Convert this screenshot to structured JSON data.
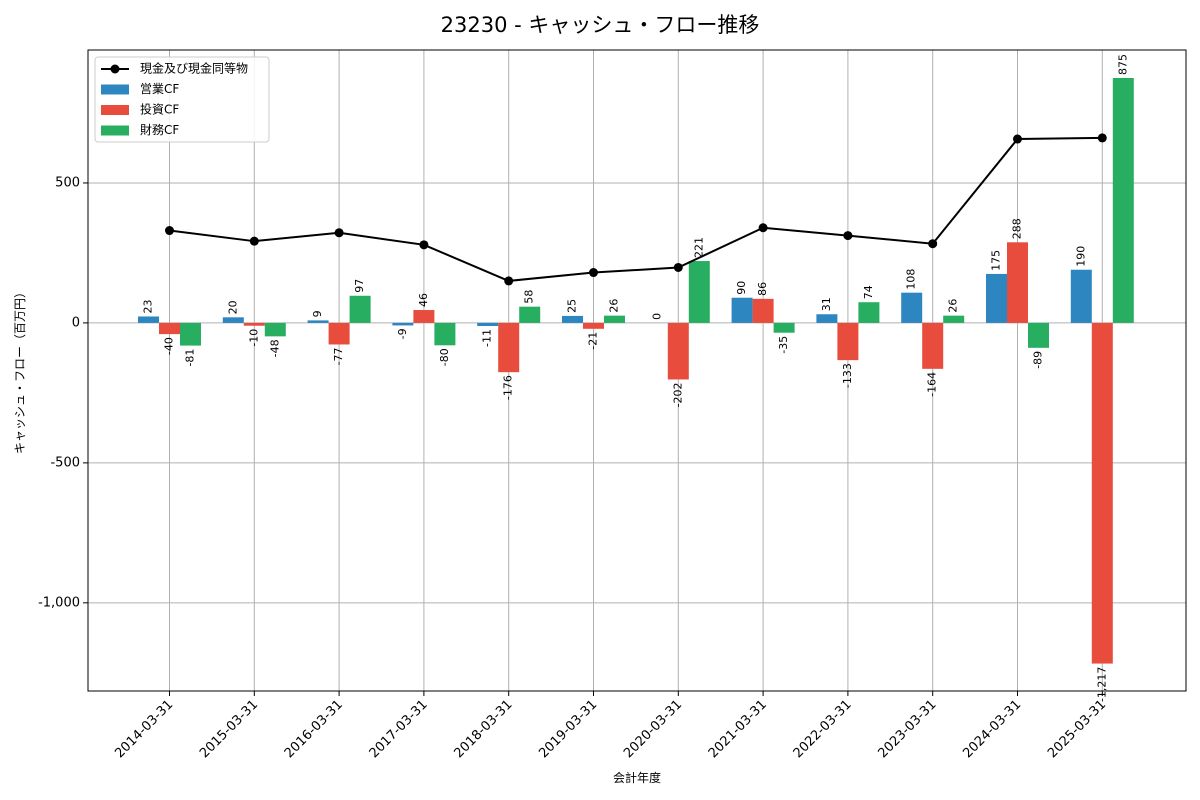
{
  "chart_data": {
    "type": "bar",
    "title": "23230 - キャッシュ・フロー推移",
    "xlabel": "会計年度",
    "ylabel": "キャッシュ・フロー（百万円）",
    "ylim": [
      -1315,
      975
    ],
    "yticks": [
      500,
      0,
      -500,
      -1000
    ],
    "ytick_labels": [
      "500",
      "0",
      "-500",
      "-1,000"
    ],
    "grid": true,
    "legend_position": "top-left",
    "categories": [
      "2014-03-31",
      "2015-03-31",
      "2016-03-31",
      "2017-03-31",
      "2018-03-31",
      "2019-03-31",
      "2020-03-31",
      "2021-03-31",
      "2022-03-31",
      "2023-03-31",
      "2024-03-31",
      "2025-03-31"
    ],
    "series": [
      {
        "name": "営業CF",
        "kind": "bar",
        "color": "#2e86c1",
        "values": [
          23,
          20,
          9,
          -9,
          -11,
          25,
          0,
          90,
          31,
          108,
          175,
          190
        ],
        "labels": [
          "23",
          "20",
          "9",
          "-9",
          "-11",
          "25",
          "0",
          "90",
          "31",
          "108",
          "175",
          "190"
        ]
      },
      {
        "name": "投資CF",
        "kind": "bar",
        "color": "#e74c3c",
        "values": [
          -40,
          -10,
          -77,
          46,
          -176,
          -21,
          -202,
          86,
          -133,
          -164,
          288,
          -1217
        ],
        "labels": [
          "-40",
          "-10",
          "-77",
          "46",
          "-176",
          "-21",
          "-202",
          "86",
          "-133",
          "-164",
          "288",
          "-1,217"
        ]
      },
      {
        "name": "財務CF",
        "kind": "bar",
        "color": "#27ae60",
        "values": [
          -81,
          -48,
          97,
          -80,
          58,
          26,
          221,
          -35,
          74,
          26,
          -89,
          875
        ],
        "labels": [
          "-81",
          "-48",
          "97",
          "-80",
          "58",
          "26",
          "221",
          "-35",
          "74",
          "26",
          "-89",
          "875"
        ]
      },
      {
        "name": "現金及び現金同等物",
        "kind": "line",
        "color": "#000000",
        "values": [
          330,
          292,
          322,
          279,
          150,
          180,
          198,
          340,
          312,
          283,
          657,
          661
        ]
      }
    ]
  }
}
